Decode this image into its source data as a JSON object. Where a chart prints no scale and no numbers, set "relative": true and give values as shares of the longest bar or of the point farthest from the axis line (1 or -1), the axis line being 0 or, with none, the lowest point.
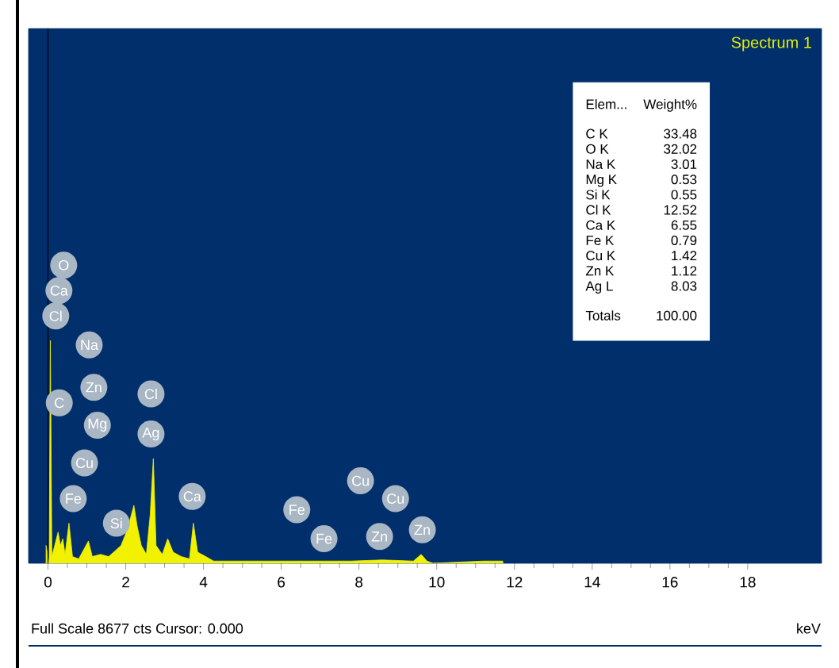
{
  "chart_data": {
    "type": "area",
    "title": "Spectrum 1",
    "xlabel": "keV",
    "relative": true,
    "color": "#f2f200",
    "xlim": [
      -0.5,
      19.9
    ],
    "xticks": [
      0,
      2,
      4,
      6,
      8,
      10,
      12,
      14,
      16,
      18
    ],
    "x": [
      -0.05,
      0.03,
      0.06,
      0.1,
      0.26,
      0.32,
      0.38,
      0.44,
      0.54,
      0.63,
      0.79,
      1.04,
      1.14,
      1.35,
      1.56,
      1.69,
      1.88,
      2.04,
      2.21,
      2.29,
      2.4,
      2.53,
      2.63,
      2.71,
      2.78,
      2.94,
      3.08,
      3.22,
      3.43,
      3.64,
      3.74,
      3.85,
      4.06,
      4.26,
      6.5,
      7.8,
      8.6,
      9.4,
      9.6,
      9.75,
      9.9,
      11.2,
      11.7
    ],
    "values": [
      0.08,
      0,
      1.0,
      0.03,
      0.14,
      0.08,
      0.11,
      0.04,
      0.18,
      0.03,
      0.02,
      0.1,
      0.03,
      0.04,
      0.03,
      0.05,
      0.08,
      0.15,
      0.26,
      0.17,
      0.08,
      0.04,
      0.22,
      0.47,
      0.08,
      0.04,
      0.11,
      0.05,
      0.03,
      0.02,
      0.18,
      0.05,
      0.03,
      0.01,
      0.01,
      0.01,
      0.015,
      0.01,
      0.04,
      0.01,
      0,
      0.01,
      0.01
    ],
    "ref_lines": [
      {
        "axis": "x",
        "value": 0,
        "color": "#000000"
      }
    ],
    "annotations": [
      "Full Scale 8677 cts Cursor: 0.000",
      "O",
      "Ca",
      {
        "text": "Cl",
        "x": 0.2,
        "y": 1.11
      },
      {
        "text": "Na",
        "x": 1.06,
        "y": 0.98
      },
      {
        "text": "Zn",
        "x": 1.18,
        "y": 0.79
      },
      {
        "text": "C",
        "x": 0.29,
        "y": 0.72
      },
      {
        "text": "Mg",
        "x": 1.27,
        "y": 0.62
      },
      {
        "text": "Cl",
        "x": 2.65,
        "y": 0.76
      },
      {
        "text": "Ag",
        "x": 2.65,
        "y": 0.58
      },
      {
        "text": "Cu",
        "x": 0.94,
        "y": 0.45
      },
      {
        "text": "Fe",
        "x": 0.65,
        "y": 0.29
      },
      {
        "text": "Si",
        "x": 1.76,
        "y": 0.18
      },
      {
        "text": "Ca",
        "x": 3.71,
        "y": 0.3
      },
      {
        "text": "Fe",
        "x": 6.4,
        "y": 0.24
      },
      {
        "text": "Fe",
        "x": 7.1,
        "y": 0.11
      },
      {
        "text": "Cu",
        "x": 8.04,
        "y": 0.37
      },
      {
        "text": "Cu",
        "x": 8.94,
        "y": 0.29
      },
      {
        "text": "Zn",
        "x": 8.53,
        "y": 0.12
      },
      {
        "text": "Zn",
        "x": 9.63,
        "y": 0.15
      },
      "Elem...",
      "Weight%",
      "C K",
      "33.48",
      "O K",
      "32.02",
      "Na K",
      "3.01",
      "Mg K",
      "0.53",
      "Si K",
      "0.55",
      "Cl K",
      "12.52",
      "Ca K",
      "6.55",
      "Fe K",
      "0.79",
      "Cu K",
      "1.42",
      "Zn K",
      "1.12",
      "Ag L",
      "8.03",
      "Totals",
      "100.00"
    ]
  }
}
